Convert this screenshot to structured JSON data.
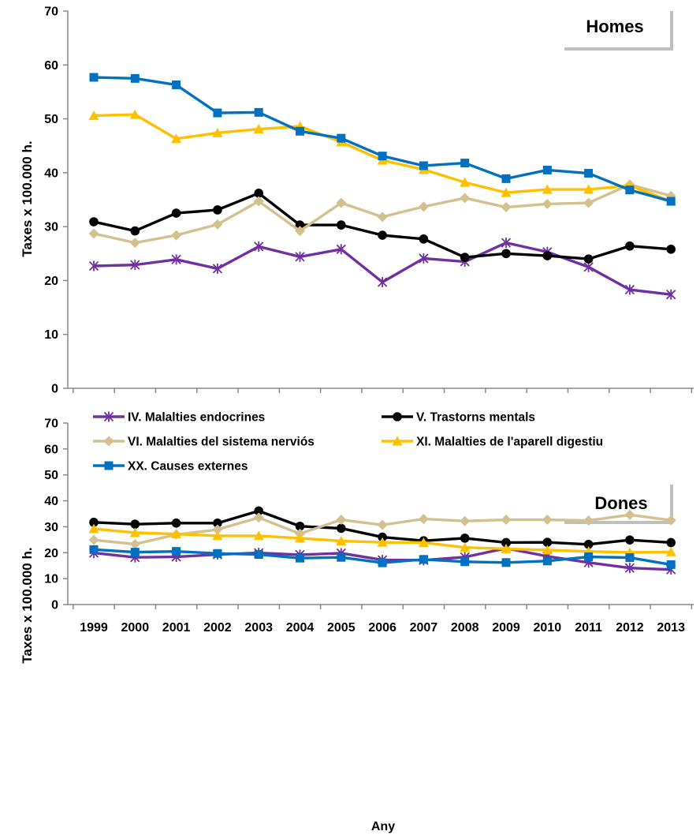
{
  "chart_data": [
    {
      "type": "line",
      "panel": "Homes",
      "ylabel": "Taxes x 100.000 h.",
      "ylim": [
        0,
        70
      ],
      "yticks": [
        0,
        10,
        20,
        30,
        40,
        50,
        60,
        70
      ],
      "categories": [
        "1999",
        "2000",
        "2001",
        "2002",
        "2003",
        "2004",
        "2005",
        "2006",
        "2007",
        "2008",
        "2009",
        "2010",
        "2011",
        "2012",
        "2013"
      ],
      "series": [
        {
          "name": "IV. Malalties endocrines",
          "color": "#7030a0",
          "marker": "star",
          "values": [
            22.7,
            22.9,
            23.9,
            22.2,
            26.3,
            24.4,
            25.8,
            19.7,
            24.1,
            23.5,
            27.0,
            25.3,
            22.5,
            18.3,
            17.4
          ]
        },
        {
          "name": "V. Trastorns  mentals",
          "color": "#000000",
          "marker": "circle",
          "values": [
            30.9,
            29.2,
            32.5,
            33.1,
            36.2,
            30.3,
            30.3,
            28.4,
            27.7,
            24.3,
            25.0,
            24.6,
            24.0,
            26.4,
            25.8
          ]
        },
        {
          "name": "VI. Malalties del sistema nerviós",
          "color": "#d2c08e",
          "marker": "diamond",
          "values": [
            28.7,
            27.0,
            28.4,
            30.4,
            34.7,
            29.2,
            34.4,
            31.8,
            33.7,
            35.3,
            33.6,
            34.2,
            34.4,
            37.8,
            35.7
          ]
        },
        {
          "name": "XI. Malalties de l'aparell digestiu",
          "color": "#ffc000",
          "marker": "triangle",
          "values": [
            50.6,
            50.8,
            46.3,
            47.4,
            48.1,
            48.6,
            45.7,
            42.3,
            40.6,
            38.2,
            36.3,
            36.9,
            36.9,
            37.6,
            34.7
          ]
        },
        {
          "name": "XX. Causes externes",
          "color": "#0070c0",
          "marker": "square",
          "values": [
            57.7,
            57.5,
            56.3,
            51.1,
            51.2,
            47.7,
            46.4,
            43.1,
            41.3,
            41.8,
            38.9,
            40.5,
            39.9,
            36.8,
            34.7
          ]
        }
      ]
    },
    {
      "type": "line",
      "panel": "Dones",
      "ylabel": "Taxes x 100.000 h.",
      "xlabel": "Any",
      "ylim": [
        0,
        70
      ],
      "yticks": [
        0,
        10,
        20,
        30,
        40,
        50,
        60,
        70
      ],
      "categories": [
        "1999",
        "2000",
        "2001",
        "2002",
        "2003",
        "2004",
        "2005",
        "2006",
        "2007",
        "2008",
        "2009",
        "2010",
        "2011",
        "2012",
        "2013"
      ],
      "series": [
        {
          "name": "IV. Malalties endocrines",
          "color": "#7030a0",
          "marker": "star",
          "values": [
            19.9,
            18.2,
            18.4,
            19.3,
            19.9,
            19.2,
            19.8,
            17.2,
            17.1,
            18.3,
            21.7,
            18.6,
            16.2,
            14.1,
            13.5
          ]
        },
        {
          "name": "V. Trastorns  mentals",
          "color": "#000000",
          "marker": "circle",
          "values": [
            31.7,
            31.0,
            31.4,
            31.4,
            36.1,
            30.2,
            29.4,
            26.0,
            24.6,
            25.6,
            23.9,
            24.0,
            23.2,
            24.9,
            23.9
          ]
        },
        {
          "name": "VI. Malalties del sistema nerviós",
          "color": "#d2c08e",
          "marker": "diamond",
          "values": [
            24.9,
            23.3,
            27.0,
            28.9,
            33.5,
            27.3,
            32.7,
            30.7,
            33.0,
            32.2,
            32.7,
            32.7,
            32.4,
            34.6,
            32.5
          ]
        },
        {
          "name": "XI. Malalties de l'aparell digestiu",
          "color": "#ffc000",
          "marker": "triangle",
          "values": [
            29.2,
            27.7,
            27.2,
            26.5,
            26.5,
            25.6,
            24.5,
            24.0,
            23.9,
            22.0,
            21.5,
            21.0,
            20.5,
            20.1,
            20.3
          ]
        },
        {
          "name": "XX. Causes externes",
          "color": "#0070c0",
          "marker": "square",
          "values": [
            21.2,
            20.2,
            20.5,
            19.7,
            19.3,
            17.9,
            18.2,
            16.1,
            17.4,
            16.5,
            16.2,
            16.8,
            18.4,
            18.1,
            15.4
          ]
        }
      ]
    }
  ],
  "legend": {
    "placement": "top of lower panel",
    "entries": [
      "IV. Malalties endocrines",
      "V. Trastorns  mentals",
      "VI. Malalties del sistema nerviós",
      "XI. Malalties de l'aparell digestiu",
      "XX. Causes externes"
    ]
  },
  "panels": {
    "top_title": "Homes",
    "bottom_title": "Dones"
  },
  "axes": {
    "ylabel": "Taxes x 100.000 h.",
    "xlabel": "Any"
  }
}
